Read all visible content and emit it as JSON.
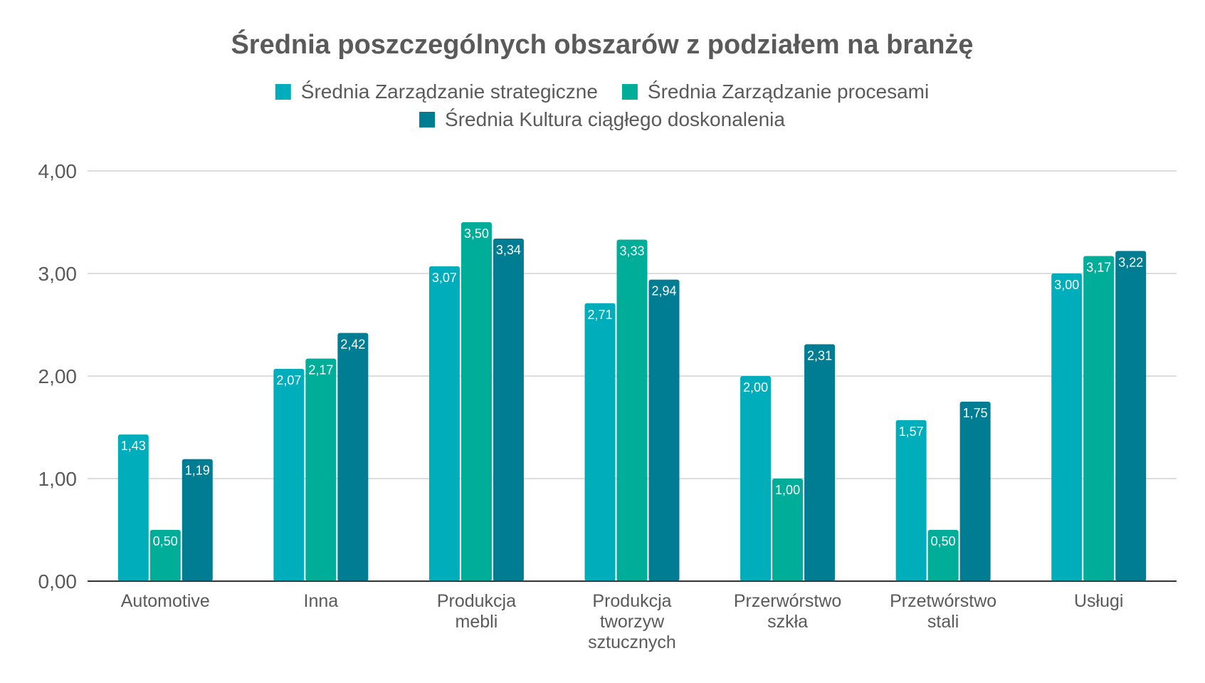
{
  "chart_data": {
    "type": "bar",
    "title": "Średnia poszczególnych obszarów z podziałem na branżę",
    "xlabel": "",
    "ylabel": "",
    "ylim": [
      0,
      4
    ],
    "yticks": [
      "0,00",
      "1,00",
      "2,00",
      "3,00",
      "4,00"
    ],
    "grid": true,
    "legend_position": "top-center",
    "categories": [
      [
        "Automotive"
      ],
      [
        "Inna"
      ],
      [
        "Produkcja",
        "mebli"
      ],
      [
        "Produkcja",
        "tworzyw",
        "sztucznych"
      ],
      [
        "Przerwórstwo",
        "szkła"
      ],
      [
        "Przetwórstwo",
        "stali"
      ],
      [
        "Usługi"
      ]
    ],
    "series": [
      {
        "name": "Średnia Zarządzanie strategiczne",
        "color": "#00AEBB",
        "values": [
          1.43,
          2.07,
          3.07,
          2.71,
          2.0,
          1.57,
          3.0
        ],
        "labels": [
          "1,43",
          "2,07",
          "3,07",
          "2,71",
          "2,00",
          "1,57",
          "3,00"
        ]
      },
      {
        "name": "Średnia Zarządzanie procesami",
        "color": "#00AD98",
        "values": [
          0.5,
          2.17,
          3.5,
          3.33,
          1.0,
          0.5,
          3.17
        ],
        "labels": [
          "0,50",
          "2,17",
          "3,50",
          "3,33",
          "1,00",
          "0,50",
          "3,17"
        ]
      },
      {
        "name": "Średnia Kultura ciągłego doskonalenia",
        "color": "#007D93",
        "values": [
          1.19,
          2.42,
          3.34,
          2.94,
          2.31,
          1.75,
          3.22
        ],
        "labels": [
          "1,19",
          "2,42",
          "3,34",
          "2,94",
          "2,31",
          "1,75",
          "3,22"
        ]
      }
    ]
  }
}
